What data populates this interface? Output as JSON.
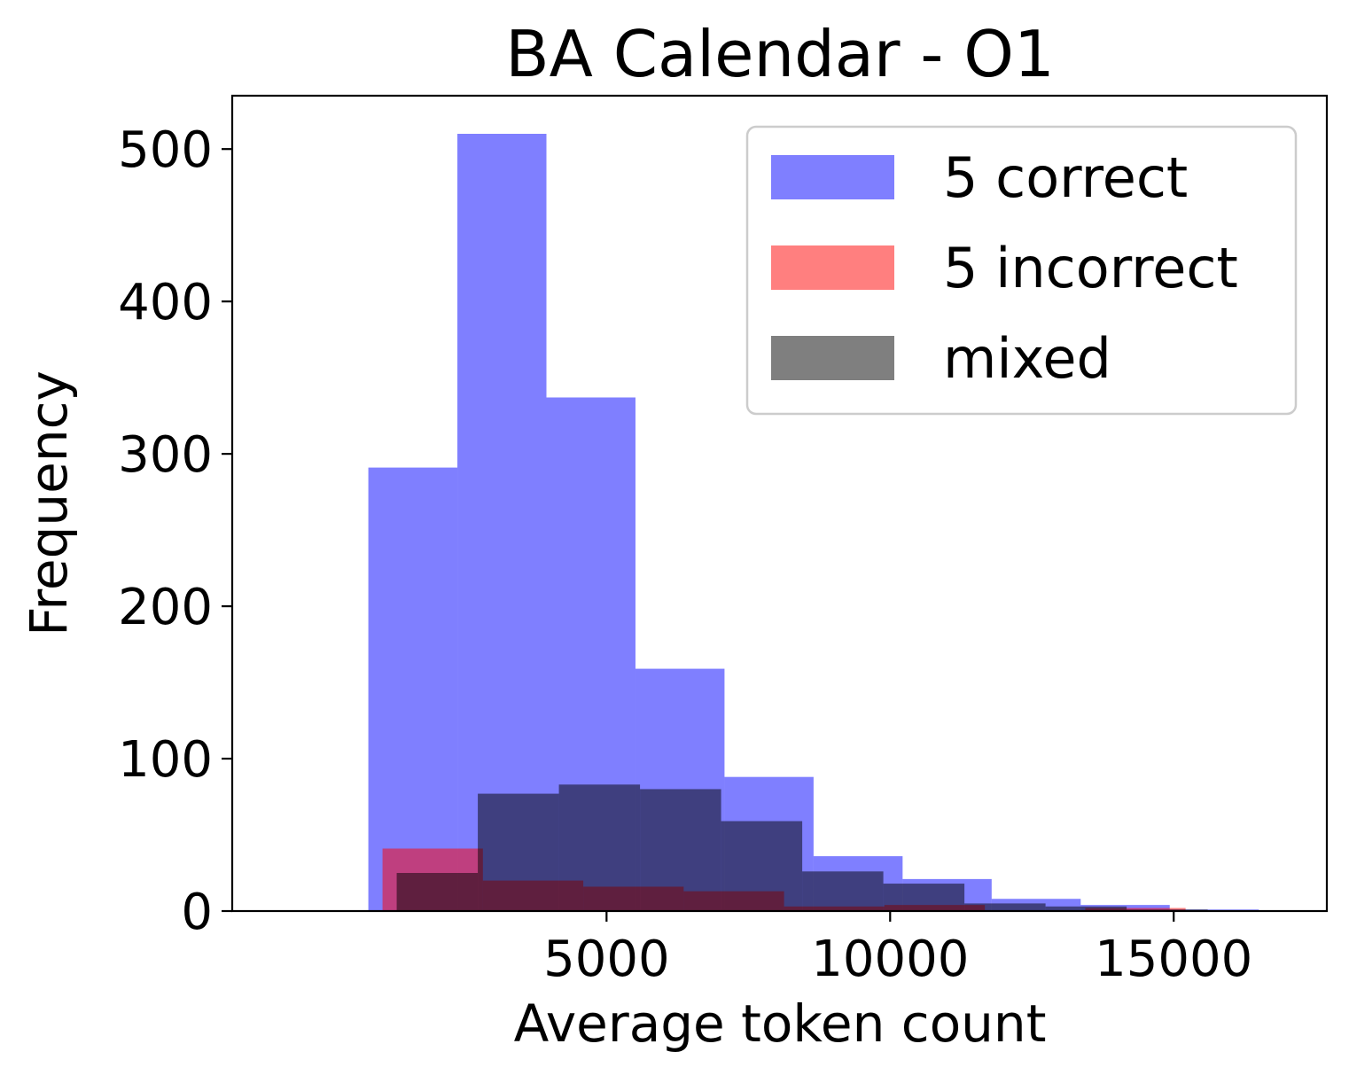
{
  "chart_data": {
    "type": "histogram",
    "title": "BA Calendar - O1",
    "xlabel": "Average token count",
    "ylabel": "Frequency",
    "xlim": [
      -1600,
      17700
    ],
    "ylim": [
      0,
      535
    ],
    "xticks": [
      5000,
      10000,
      15000
    ],
    "yticks": [
      0,
      100,
      200,
      300,
      400,
      500
    ],
    "grid": false,
    "legend_position": "top-right",
    "series": [
      {
        "name": "5 correct",
        "color": "#0000ff",
        "opacity": 0.5,
        "bin_edges": [
          800,
          2370,
          3940,
          5510,
          7080,
          8650,
          10220,
          11790,
          13360,
          14930,
          16500
        ],
        "counts": [
          291,
          510,
          337,
          159,
          88,
          36,
          21,
          8,
          4,
          1
        ]
      },
      {
        "name": "5 incorrect",
        "color": "#ff0000",
        "opacity": 0.5,
        "bin_edges": [
          1050,
          2820,
          4590,
          6360,
          8130,
          9900,
          11670,
          13440,
          15210,
          16980,
          18750
        ],
        "counts": [
          41,
          20,
          16,
          13,
          3,
          4,
          0,
          2,
          0,
          0
        ]
      },
      {
        "name": "mixed",
        "color": "#000000",
        "opacity": 0.5,
        "bin_edges": [
          1300,
          2730,
          4160,
          5590,
          7020,
          8450,
          9880,
          11310,
          12740,
          14170,
          15600
        ],
        "counts": [
          25,
          77,
          83,
          80,
          59,
          26,
          18,
          5,
          3,
          1
        ]
      }
    ]
  }
}
